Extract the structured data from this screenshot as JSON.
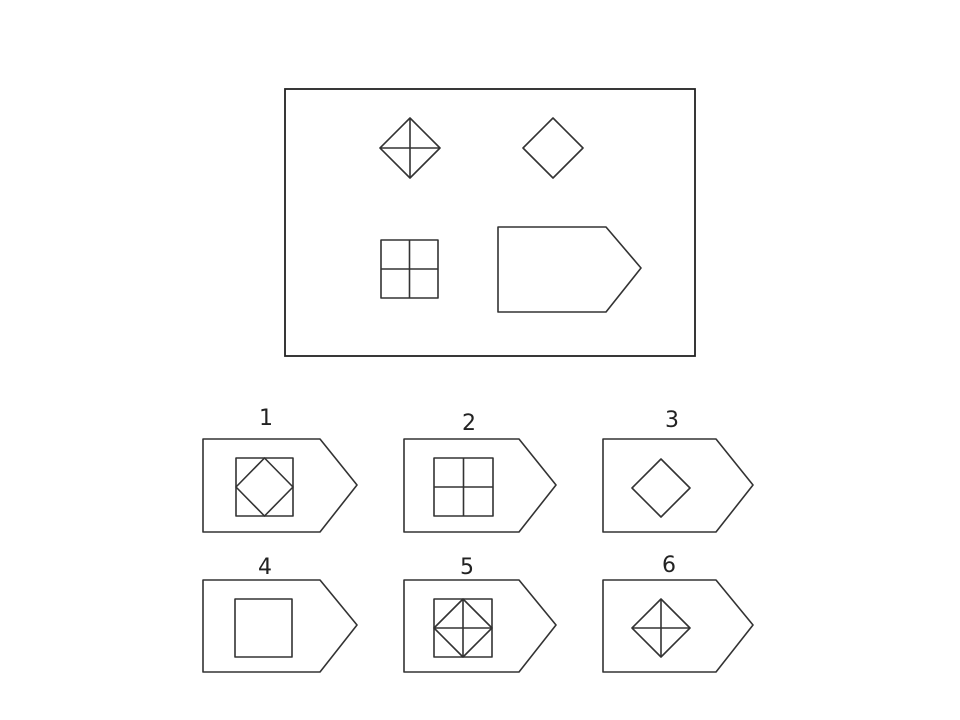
{
  "puzzle": {
    "colors": {
      "stroke": "#333333",
      "frame": "#222222",
      "background": "#ffffff"
    },
    "question": {
      "cells": [
        {
          "shape": "diamond",
          "detail": "cross"
        },
        {
          "shape": "diamond",
          "detail": "plain"
        },
        {
          "shape": "square",
          "detail": "cross"
        },
        {
          "shape": "pentagon-tag",
          "detail": "blank"
        }
      ]
    },
    "options": [
      {
        "label": "1",
        "figure": "square-with-inscribed-diamond"
      },
      {
        "label": "2",
        "figure": "square-with-cross"
      },
      {
        "label": "3",
        "figure": "diamond"
      },
      {
        "label": "4",
        "figure": "square"
      },
      {
        "label": "5",
        "figure": "square-with-diamond-and-cross"
      },
      {
        "label": "6",
        "figure": "diamond-with-cross"
      }
    ]
  }
}
